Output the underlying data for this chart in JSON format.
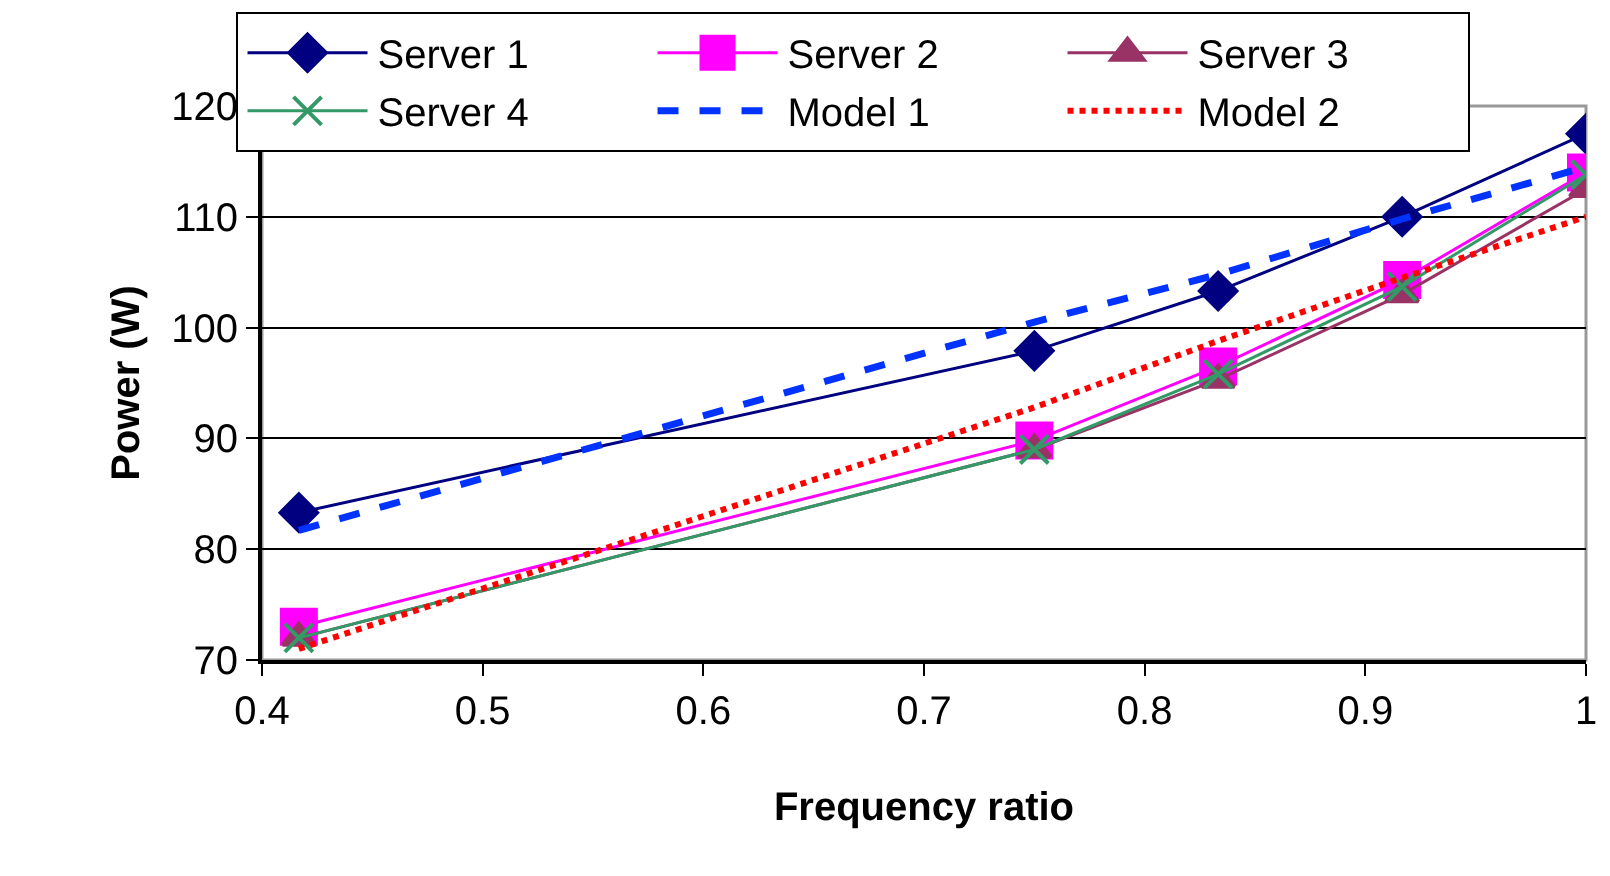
{
  "chart_data": {
    "type": "line",
    "xlabel": "Frequency ratio",
    "ylabel": "Power (W)",
    "x": [
      0.4167,
      0.75,
      0.8333,
      0.9167,
      1
    ],
    "xlim": [
      0.4,
      1
    ],
    "xticks": [
      0.4,
      0.5,
      0.6,
      0.7,
      0.8,
      0.9,
      1
    ],
    "ylim": [
      70,
      120
    ],
    "yticks": [
      70,
      80,
      90,
      100,
      110,
      120
    ],
    "grid": "y",
    "legend": "top left",
    "series": [
      {
        "name": "Server 1",
        "color": "#000080",
        "marker": "diamond",
        "line_style": "solid",
        "values": [
          83.3,
          97.9,
          103.3,
          110,
          117.5
        ]
      },
      {
        "name": "Server 2",
        "color": "#ff00ff",
        "marker": "square",
        "line_style": "solid",
        "values": [
          73,
          89.8,
          96.5,
          104.3,
          114
        ]
      },
      {
        "name": "Server 3",
        "color": "#993366",
        "marker": "triangle",
        "line_style": "solid",
        "values": [
          72,
          89,
          95.3,
          103,
          112.5
        ]
      },
      {
        "name": "Server 4",
        "color": "#339966",
        "marker": "cross",
        "line_style": "solid",
        "values": [
          72,
          89,
          95.8,
          103.7,
          113.8
        ]
      },
      {
        "name": "Model 1",
        "color": "#0033ff",
        "marker": "none",
        "line_style": "dashed",
        "values": [
          81.7,
          100.5,
          104.8,
          109.8,
          114.5
        ]
      },
      {
        "name": "Model 2",
        "color": "#ff0000",
        "marker": "none",
        "line_style": "dotted",
        "values": [
          71,
          92.8,
          98.8,
          104.5,
          110
        ]
      }
    ]
  }
}
